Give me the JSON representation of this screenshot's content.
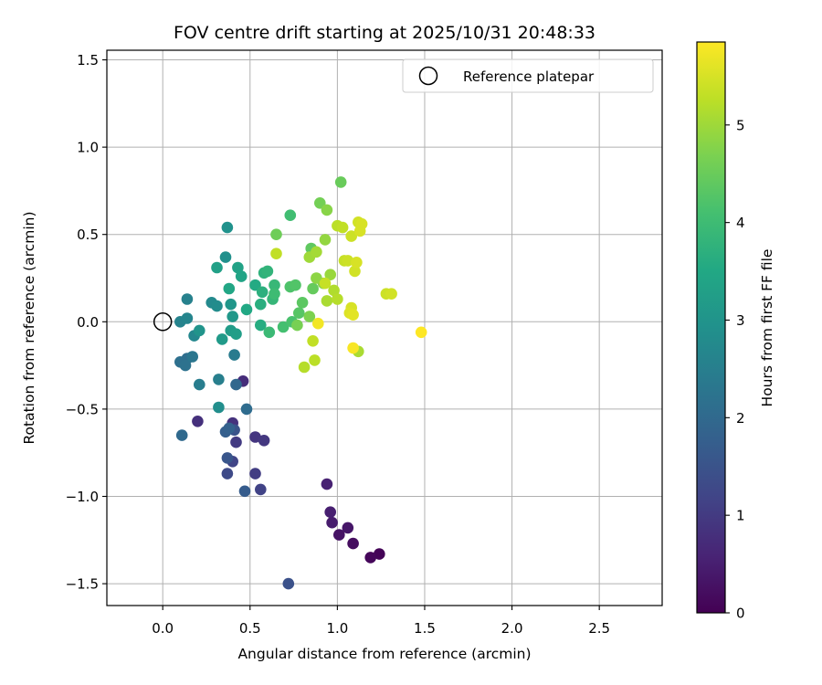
{
  "chart_data": {
    "type": "scatter",
    "title": "FOV centre drift starting at 2025/10/31 20:48:33",
    "xlabel": "Angular distance from reference (arcmin)",
    "ylabel": "Rotation from reference (arcmin)",
    "xlim": [
      -0.32,
      2.86
    ],
    "ylim": [
      -1.625,
      1.555
    ],
    "xticks": [
      0.0,
      0.5,
      1.0,
      1.5,
      2.0,
      2.5
    ],
    "xtick_labels": [
      "0.0",
      "0.5",
      "1.0",
      "1.5",
      "2.0",
      "2.5"
    ],
    "yticks": [
      -1.5,
      -1.0,
      -0.5,
      0.0,
      0.5,
      1.0,
      1.5
    ],
    "ytick_labels": [
      "−1.5",
      "−1.0",
      "−0.5",
      "0.0",
      "0.5",
      "1.0",
      "1.5"
    ],
    "grid": true,
    "colorbar": {
      "label": "Hours from first FF file",
      "range": [
        0,
        5.85
      ],
      "ticks": [
        0,
        1,
        2,
        3,
        4,
        5
      ],
      "tick_labels": [
        "0",
        "1",
        "2",
        "3",
        "4",
        "5"
      ],
      "colormap": "viridis"
    },
    "legend": {
      "position": "top-right",
      "label": "Reference platepar"
    },
    "reference_point": {
      "x": 0.0,
      "y": 0.0
    },
    "series": [
      {
        "name": "FOV centre",
        "points": [
          {
            "x": 1.24,
            "y": -1.33,
            "t": 0.05
          },
          {
            "x": 1.19,
            "y": -1.35,
            "t": 0.1
          },
          {
            "x": 1.09,
            "y": -1.27,
            "t": 0.2
          },
          {
            "x": 1.01,
            "y": -1.22,
            "t": 0.3
          },
          {
            "x": 1.06,
            "y": -1.18,
            "t": 0.35
          },
          {
            "x": 0.97,
            "y": -1.15,
            "t": 0.45
          },
          {
            "x": 0.96,
            "y": -1.09,
            "t": 0.5
          },
          {
            "x": 0.94,
            "y": -0.93,
            "t": 0.55
          },
          {
            "x": 0.46,
            "y": -0.34,
            "t": 0.75
          },
          {
            "x": 0.2,
            "y": -0.57,
            "t": 0.8
          },
          {
            "x": 0.4,
            "y": -0.58,
            "t": 0.85
          },
          {
            "x": 0.53,
            "y": -0.66,
            "t": 0.9
          },
          {
            "x": 0.58,
            "y": -0.68,
            "t": 0.95
          },
          {
            "x": 0.42,
            "y": -0.69,
            "t": 1.0
          },
          {
            "x": 0.53,
            "y": -0.87,
            "t": 1.05
          },
          {
            "x": 0.56,
            "y": -0.96,
            "t": 1.15
          },
          {
            "x": 0.4,
            "y": -0.8,
            "t": 1.2
          },
          {
            "x": 0.37,
            "y": -0.87,
            "t": 1.3
          },
          {
            "x": 0.72,
            "y": -1.5,
            "t": 1.45
          },
          {
            "x": 0.41,
            "y": -0.62,
            "t": 1.5
          },
          {
            "x": 0.37,
            "y": -0.78,
            "t": 1.55
          },
          {
            "x": 0.47,
            "y": -0.97,
            "t": 1.7
          },
          {
            "x": 0.36,
            "y": -0.63,
            "t": 1.75
          },
          {
            "x": 0.38,
            "y": -0.61,
            "t": 1.8
          },
          {
            "x": 0.42,
            "y": -0.36,
            "t": 1.95
          },
          {
            "x": 0.11,
            "y": -0.65,
            "t": 2.0
          },
          {
            "x": 0.48,
            "y": -0.5,
            "t": 2.05
          },
          {
            "x": 0.14,
            "y": -0.21,
            "t": 2.1
          },
          {
            "x": 0.1,
            "y": -0.23,
            "t": 2.15
          },
          {
            "x": 0.13,
            "y": -0.25,
            "t": 2.2
          },
          {
            "x": 0.17,
            "y": -0.2,
            "t": 2.3
          },
          {
            "x": 0.41,
            "y": -0.19,
            "t": 2.4
          },
          {
            "x": 0.21,
            "y": -0.36,
            "t": 2.45
          },
          {
            "x": 0.32,
            "y": -0.33,
            "t": 2.5
          },
          {
            "x": 0.14,
            "y": 0.13,
            "t": 2.55
          },
          {
            "x": 0.1,
            "y": 0.0,
            "t": 2.6
          },
          {
            "x": 0.14,
            "y": 0.02,
            "t": 2.65
          },
          {
            "x": 0.18,
            "y": -0.08,
            "t": 2.7
          },
          {
            "x": 0.28,
            "y": 0.11,
            "t": 2.75
          },
          {
            "x": 0.31,
            "y": 0.09,
            "t": 2.8
          },
          {
            "x": 0.32,
            "y": -0.49,
            "t": 2.85
          },
          {
            "x": 0.36,
            "y": 0.37,
            "t": 2.9
          },
          {
            "x": 0.37,
            "y": 0.54,
            "t": 2.95
          },
          {
            "x": 0.21,
            "y": -0.05,
            "t": 3.0
          },
          {
            "x": 0.39,
            "y": 0.1,
            "t": 3.05
          },
          {
            "x": 0.4,
            "y": 0.03,
            "t": 3.1
          },
          {
            "x": 0.34,
            "y": -0.1,
            "t": 3.15
          },
          {
            "x": 0.39,
            "y": -0.05,
            "t": 3.2
          },
          {
            "x": 0.42,
            "y": -0.07,
            "t": 3.25
          },
          {
            "x": 0.31,
            "y": 0.31,
            "t": 3.3
          },
          {
            "x": 0.43,
            "y": 0.31,
            "t": 3.35
          },
          {
            "x": 0.45,
            "y": 0.26,
            "t": 3.4
          },
          {
            "x": 0.38,
            "y": 0.19,
            "t": 3.45
          },
          {
            "x": 0.48,
            "y": 0.07,
            "t": 3.5
          },
          {
            "x": 0.53,
            "y": 0.21,
            "t": 3.55
          },
          {
            "x": 0.56,
            "y": -0.02,
            "t": 3.6
          },
          {
            "x": 0.56,
            "y": 0.1,
            "t": 3.65
          },
          {
            "x": 0.57,
            "y": 0.17,
            "t": 3.7
          },
          {
            "x": 0.58,
            "y": 0.28,
            "t": 3.75
          },
          {
            "x": 0.6,
            "y": 0.29,
            "t": 3.8
          },
          {
            "x": 0.63,
            "y": 0.13,
            "t": 3.85
          },
          {
            "x": 0.64,
            "y": 0.21,
            "t": 3.9
          },
          {
            "x": 0.61,
            "y": -0.06,
            "t": 3.95
          },
          {
            "x": 0.64,
            "y": 0.16,
            "t": 4.0
          },
          {
            "x": 0.73,
            "y": 0.61,
            "t": 4.05
          },
          {
            "x": 0.69,
            "y": -0.03,
            "t": 4.1
          },
          {
            "x": 0.74,
            "y": 0.0,
            "t": 4.15
          },
          {
            "x": 0.73,
            "y": 0.2,
            "t": 4.2
          },
          {
            "x": 0.76,
            "y": 0.21,
            "t": 4.25
          },
          {
            "x": 0.78,
            "y": 0.05,
            "t": 4.3
          },
          {
            "x": 0.8,
            "y": 0.11,
            "t": 4.35
          },
          {
            "x": 0.85,
            "y": 0.42,
            "t": 4.4
          },
          {
            "x": 0.86,
            "y": 0.19,
            "t": 4.45
          },
          {
            "x": 1.02,
            "y": 0.8,
            "t": 4.5
          },
          {
            "x": 0.65,
            "y": 0.5,
            "t": 4.55
          },
          {
            "x": 0.9,
            "y": 0.68,
            "t": 4.6
          },
          {
            "x": 0.77,
            "y": -0.02,
            "t": 4.65
          },
          {
            "x": 0.84,
            "y": 0.03,
            "t": 4.7
          },
          {
            "x": 0.92,
            "y": 0.22,
            "t": 4.75
          },
          {
            "x": 0.94,
            "y": 0.64,
            "t": 4.8
          },
          {
            "x": 0.88,
            "y": 0.25,
            "t": 4.85
          },
          {
            "x": 0.93,
            "y": 0.47,
            "t": 4.9
          },
          {
            "x": 0.96,
            "y": 0.27,
            "t": 4.95
          },
          {
            "x": 0.84,
            "y": 0.37,
            "t": 5.0
          },
          {
            "x": 0.88,
            "y": 0.4,
            "t": 5.05
          },
          {
            "x": 0.94,
            "y": 0.12,
            "t": 5.1
          },
          {
            "x": 0.98,
            "y": 0.18,
            "t": 5.15
          },
          {
            "x": 1.0,
            "y": 0.13,
            "t": 5.2
          },
          {
            "x": 1.0,
            "y": 0.55,
            "t": 5.25
          },
          {
            "x": 1.03,
            "y": 0.54,
            "t": 5.3
          },
          {
            "x": 1.04,
            "y": 0.35,
            "t": 5.35
          },
          {
            "x": 1.06,
            "y": 0.35,
            "t": 5.4
          },
          {
            "x": 1.08,
            "y": 0.49,
            "t": 5.4
          },
          {
            "x": 1.1,
            "y": 0.29,
            "t": 5.45
          },
          {
            "x": 1.12,
            "y": 0.57,
            "t": 5.45
          },
          {
            "x": 1.13,
            "y": 0.52,
            "t": 5.5
          },
          {
            "x": 1.14,
            "y": 0.56,
            "t": 5.5
          },
          {
            "x": 1.11,
            "y": 0.34,
            "t": 5.5
          },
          {
            "x": 1.28,
            "y": 0.16,
            "t": 5.4
          },
          {
            "x": 1.31,
            "y": 0.16,
            "t": 5.45
          },
          {
            "x": 0.65,
            "y": 0.39,
            "t": 5.3
          },
          {
            "x": 0.81,
            "y": -0.26,
            "t": 5.2
          },
          {
            "x": 0.87,
            "y": -0.22,
            "t": 5.25
          },
          {
            "x": 0.86,
            "y": -0.11,
            "t": 5.3
          },
          {
            "x": 0.93,
            "y": 0.22,
            "t": 5.35
          },
          {
            "x": 1.08,
            "y": 0.08,
            "t": 5.5
          },
          {
            "x": 1.07,
            "y": 0.05,
            "t": 5.55
          },
          {
            "x": 1.09,
            "y": 0.04,
            "t": 5.6
          },
          {
            "x": 1.12,
            "y": -0.17,
            "t": 5.1
          },
          {
            "x": 0.89,
            "y": -0.01,
            "t": 5.75
          },
          {
            "x": 1.09,
            "y": -0.15,
            "t": 5.8
          },
          {
            "x": 1.48,
            "y": -0.06,
            "t": 5.85
          }
        ]
      }
    ]
  }
}
